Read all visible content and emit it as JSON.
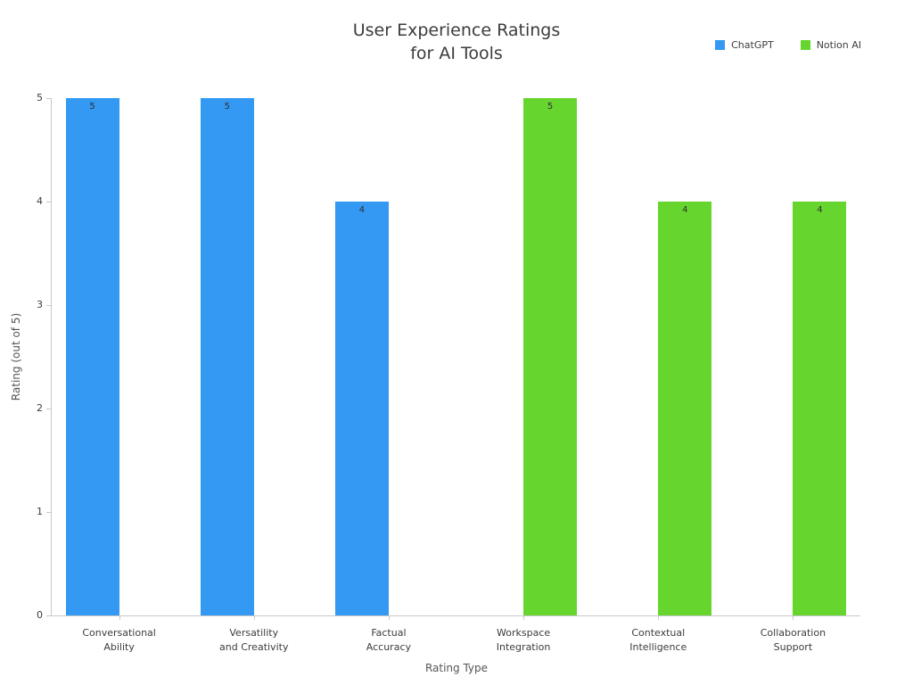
{
  "chart": {
    "title": "User Experience Ratings\nfor AI Tools",
    "x_axis_title": "Rating Type",
    "y_axis_title": "Rating (out of 5)"
  },
  "legend": {
    "items": [
      {
        "label": "ChatGPT",
        "color": "#3399f2"
      },
      {
        "label": "Notion AI",
        "color": "#66d62e"
      }
    ]
  },
  "chart_data": {
    "type": "bar",
    "title": "User Experience Ratings for AI Tools",
    "xlabel": "Rating Type",
    "ylabel": "Rating (out of 5)",
    "ylim": [
      0,
      5
    ],
    "yticks": [
      0,
      1,
      2,
      3,
      4,
      5
    ],
    "grid": false,
    "legend_position": "top-right",
    "categories": [
      "Conversational\nAbility",
      "Versatility\nand Creativity",
      "Factual\nAccuracy",
      "Workspace\nIntegration",
      "Contextual\nIntelligence",
      "Collaboration\nSupport"
    ],
    "series": [
      {
        "name": "ChatGPT",
        "color": "#3399f2",
        "values": [
          5,
          5,
          4,
          null,
          null,
          null
        ]
      },
      {
        "name": "Notion AI",
        "color": "#66d62e",
        "values": [
          null,
          null,
          null,
          5,
          4,
          4
        ]
      }
    ],
    "bar_value_labels": [
      5,
      5,
      4,
      5,
      4,
      4
    ]
  }
}
